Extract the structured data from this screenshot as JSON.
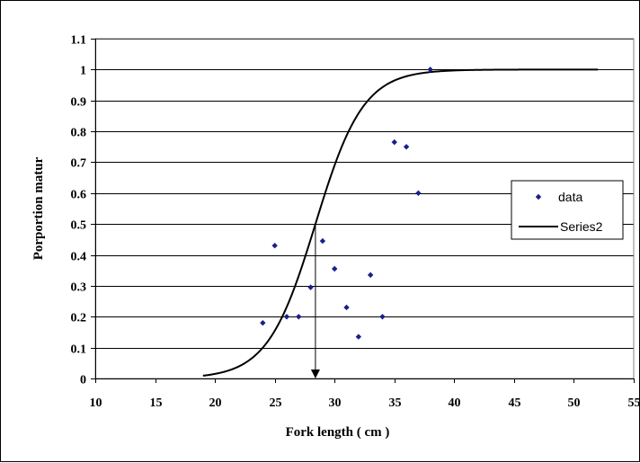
{
  "chart_data": {
    "type": "scatter",
    "title": "",
    "xlabel": "Fork length ( cm )",
    "ylabel": "Porportion matur",
    "xlim": [
      10,
      55
    ],
    "ylim": [
      0,
      1.1
    ],
    "xticks": [
      10,
      15,
      20,
      25,
      30,
      35,
      40,
      45,
      50,
      55
    ],
    "yticks": [
      0,
      0.1,
      0.2,
      0.3,
      0.4,
      0.5,
      0.6,
      0.7,
      0.8,
      0.9,
      1,
      1.1
    ],
    "grid": "horizontal",
    "legend_position": "right",
    "colors": {
      "points": "#1a1f8c",
      "curve": "#000000"
    },
    "series": [
      {
        "name": "data",
        "type": "scatter",
        "points": [
          [
            24,
            0.18
          ],
          [
            25,
            0.43
          ],
          [
            26,
            0.2
          ],
          [
            27,
            0.2
          ],
          [
            28,
            0.295
          ],
          [
            29,
            0.445
          ],
          [
            30,
            0.355
          ],
          [
            31,
            0.23
          ],
          [
            32,
            0.135
          ],
          [
            33,
            0.335
          ],
          [
            34,
            0.2
          ],
          [
            35,
            0.765
          ],
          [
            36,
            0.75
          ],
          [
            37,
            0.6
          ],
          [
            38,
            1.0
          ]
        ]
      },
      {
        "name": "Series2",
        "type": "line",
        "logistic": {
          "l50": 28.4,
          "slope": 0.5
        },
        "x_range": [
          19,
          52
        ]
      }
    ],
    "annotations": [
      {
        "type": "arrow",
        "x": 28.4,
        "from_y": 0.5,
        "to_y": 0
      }
    ]
  }
}
